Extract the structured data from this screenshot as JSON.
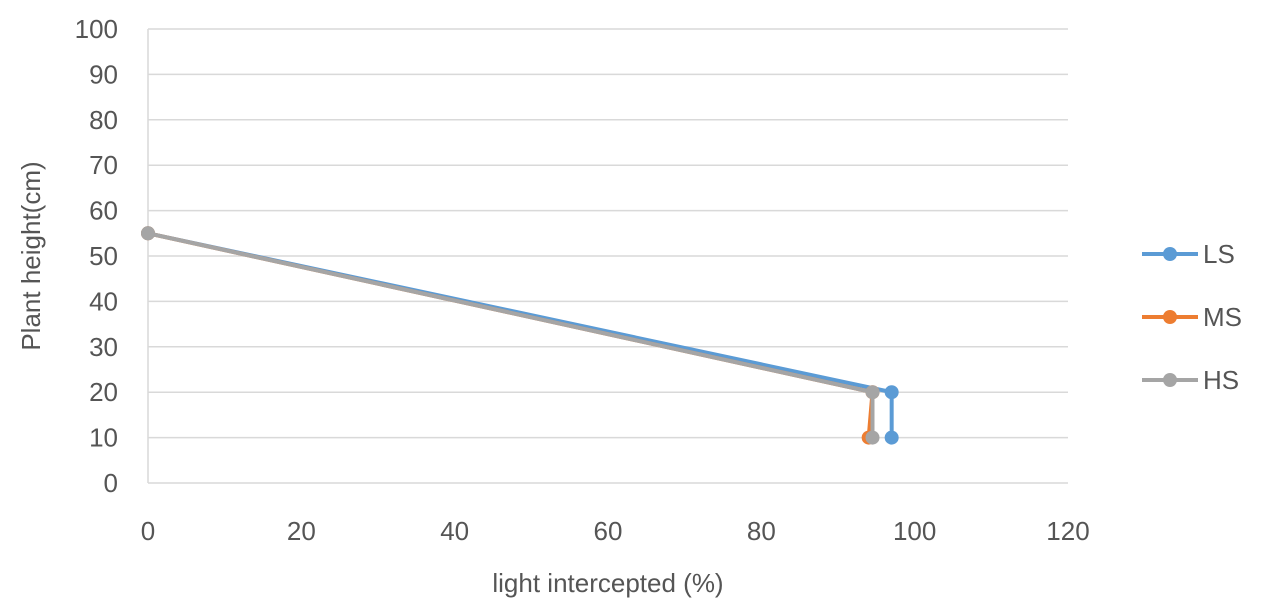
{
  "chart_data": {
    "type": "scatter",
    "title": "",
    "xlabel": "light intercepted (%)",
    "ylabel": "Plant height(cm)",
    "xlim": [
      0,
      120
    ],
    "ylim": [
      0,
      100
    ],
    "xticks": [
      0,
      20,
      40,
      60,
      80,
      100,
      120
    ],
    "yticks": [
      0,
      10,
      20,
      30,
      40,
      50,
      60,
      70,
      80,
      90,
      100
    ],
    "grid": "horizontal",
    "legend_position": "right",
    "series": [
      {
        "name": "LS",
        "color": "#5b9bd5",
        "x": [
          0,
          97,
          97
        ],
        "y": [
          55,
          20,
          10
        ]
      },
      {
        "name": "MS",
        "color": "#ed7d31",
        "x": [
          0,
          94.5,
          94
        ],
        "y": [
          55,
          20,
          10
        ]
      },
      {
        "name": "HS",
        "color": "#a5a5a5",
        "x": [
          0,
          94.5,
          94.5
        ],
        "y": [
          55,
          20,
          10
        ]
      }
    ]
  }
}
